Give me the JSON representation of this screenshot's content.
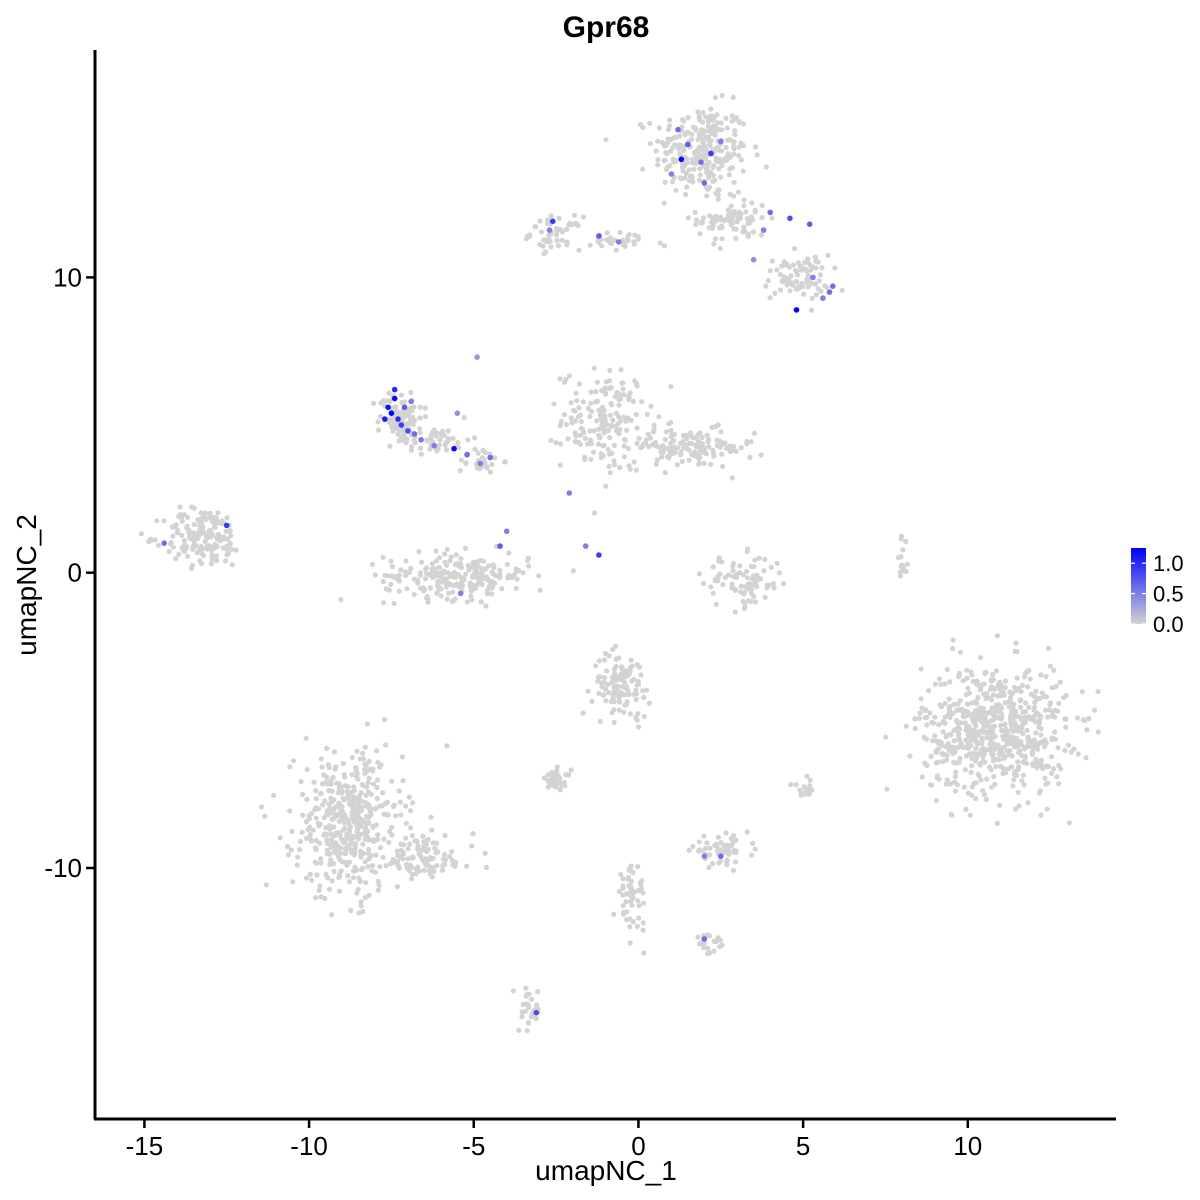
{
  "chart_data": {
    "type": "scatter",
    "title": "Gpr68",
    "xlabel": "umapNC_1",
    "ylabel": "umapNC_2",
    "xlim": [
      -16.5,
      14.5
    ],
    "ylim": [
      -18.5,
      17.7
    ],
    "x_ticks": [
      -15,
      -10,
      -5,
      0,
      5,
      10
    ],
    "x_tick_labels": [
      "-15",
      "-10",
      "-5",
      "0",
      "5",
      "10"
    ],
    "y_ticks": [
      -10,
      0,
      10
    ],
    "y_tick_labels": [
      "-10",
      "0",
      "10"
    ],
    "grid": false,
    "legend": {
      "position": "right",
      "ticks": [
        0.0,
        0.5,
        1.0
      ],
      "tick_labels": [
        "0.0",
        "0.5",
        "1.0"
      ],
      "range": [
        0.0,
        1.25
      ]
    },
    "colors": {
      "low": "#d3d3d3",
      "high": "#0000ff"
    },
    "clusters": [
      {
        "cx": 1.9,
        "cy": 14.3,
        "rx": 1.3,
        "ry": 1.4,
        "n": 260
      },
      {
        "cx": 2.9,
        "cy": 12.0,
        "rx": 1.0,
        "ry": 0.8,
        "n": 80
      },
      {
        "cx": 4.8,
        "cy": 10.0,
        "rx": 0.9,
        "ry": 0.7,
        "n": 80
      },
      {
        "cx": -2.5,
        "cy": 11.5,
        "rx": 0.7,
        "ry": 0.5,
        "n": 50
      },
      {
        "cx": -0.5,
        "cy": 11.2,
        "rx": 1.2,
        "ry": 0.3,
        "n": 30
      },
      {
        "cx": -1.0,
        "cy": 5.2,
        "rx": 1.2,
        "ry": 1.5,
        "n": 170
      },
      {
        "cx": 1.5,
        "cy": 4.2,
        "rx": 1.8,
        "ry": 0.6,
        "n": 130
      },
      {
        "cx": -7.2,
        "cy": 5.3,
        "rx": 0.6,
        "ry": 0.8,
        "n": 90
      },
      {
        "cx": -6.2,
        "cy": 4.5,
        "rx": 1.0,
        "ry": 0.4,
        "n": 50
      },
      {
        "cx": -4.8,
        "cy": 3.8,
        "rx": 0.6,
        "ry": 0.4,
        "n": 30
      },
      {
        "cx": -13.2,
        "cy": 1.2,
        "rx": 1.1,
        "ry": 0.9,
        "n": 160
      },
      {
        "cx": -5.5,
        "cy": -0.1,
        "rx": 2.0,
        "ry": 0.7,
        "n": 230
      },
      {
        "cx": 3.2,
        "cy": -0.3,
        "rx": 1.1,
        "ry": 0.8,
        "n": 90
      },
      {
        "cx": 10.8,
        "cy": -5.3,
        "rx": 2.0,
        "ry": 2.0,
        "n": 650
      },
      {
        "cx": -0.5,
        "cy": -3.8,
        "rx": 0.8,
        "ry": 1.0,
        "n": 110
      },
      {
        "cx": -8.8,
        "cy": -8.5,
        "rx": 1.5,
        "ry": 2.2,
        "n": 450
      },
      {
        "cx": -6.5,
        "cy": -9.7,
        "rx": 1.4,
        "ry": 0.7,
        "n": 90
      },
      {
        "cx": -2.5,
        "cy": -7.0,
        "rx": 0.4,
        "ry": 0.3,
        "n": 35
      },
      {
        "cx": 2.5,
        "cy": -9.4,
        "rx": 0.8,
        "ry": 0.4,
        "n": 60
      },
      {
        "cx": -0.2,
        "cy": -11.0,
        "rx": 0.4,
        "ry": 1.0,
        "n": 55
      },
      {
        "cx": -3.3,
        "cy": -14.8,
        "rx": 0.3,
        "ry": 0.7,
        "n": 30
      },
      {
        "cx": 5.0,
        "cy": -7.3,
        "rx": 0.3,
        "ry": 0.3,
        "n": 15
      },
      {
        "cx": 8.0,
        "cy": 0.3,
        "rx": 0.2,
        "ry": 0.8,
        "n": 15
      },
      {
        "cx": 2.2,
        "cy": -12.6,
        "rx": 0.5,
        "ry": 0.3,
        "n": 20
      }
    ],
    "expressing_points": [
      {
        "x": -7.6,
        "y": 5.6,
        "v": 1.15
      },
      {
        "x": -7.4,
        "y": 5.9,
        "v": 1.2
      },
      {
        "x": -7.3,
        "y": 5.2,
        "v": 1.0
      },
      {
        "x": -7.5,
        "y": 5.4,
        "v": 1.25
      },
      {
        "x": -7.2,
        "y": 5.0,
        "v": 0.9
      },
      {
        "x": -7.0,
        "y": 4.8,
        "v": 0.8
      },
      {
        "x": -7.7,
        "y": 5.2,
        "v": 1.1
      },
      {
        "x": -7.1,
        "y": 5.6,
        "v": 0.7
      },
      {
        "x": -6.8,
        "y": 4.7,
        "v": 0.6
      },
      {
        "x": -6.6,
        "y": 4.5,
        "v": 0.55
      },
      {
        "x": -7.4,
        "y": 6.2,
        "v": 1.0
      },
      {
        "x": -6.9,
        "y": 5.8,
        "v": 0.5
      },
      {
        "x": -5.6,
        "y": 4.2,
        "v": 1.2
      },
      {
        "x": -5.2,
        "y": 4.0,
        "v": 0.6
      },
      {
        "x": -4.8,
        "y": 3.7,
        "v": 0.5
      },
      {
        "x": -4.5,
        "y": 3.9,
        "v": 0.6
      },
      {
        "x": -5.5,
        "y": 5.4,
        "v": 0.4
      },
      {
        "x": -6.2,
        "y": 4.3,
        "v": 0.5
      },
      {
        "x": -4.9,
        "y": 7.3,
        "v": 0.35
      },
      {
        "x": -12.5,
        "y": 1.6,
        "v": 0.9
      },
      {
        "x": -14.4,
        "y": 1.0,
        "v": 0.6
      },
      {
        "x": -4.2,
        "y": 0.9,
        "v": 0.7
      },
      {
        "x": -4.0,
        "y": 1.4,
        "v": 0.5
      },
      {
        "x": -5.4,
        "y": -0.7,
        "v": 0.5
      },
      {
        "x": -2.1,
        "y": 2.7,
        "v": 0.5
      },
      {
        "x": -1.2,
        "y": 0.6,
        "v": 0.9
      },
      {
        "x": -1.6,
        "y": 0.9,
        "v": 0.5
      },
      {
        "x": 1.2,
        "y": 15.0,
        "v": 0.6
      },
      {
        "x": 1.5,
        "y": 14.5,
        "v": 0.7
      },
      {
        "x": 2.2,
        "y": 14.2,
        "v": 0.9
      },
      {
        "x": 1.9,
        "y": 13.9,
        "v": 0.6
      },
      {
        "x": 1.3,
        "y": 14.0,
        "v": 1.2
      },
      {
        "x": 2.5,
        "y": 14.6,
        "v": 0.5
      },
      {
        "x": 1.0,
        "y": 13.5,
        "v": 0.5
      },
      {
        "x": 2.0,
        "y": 13.2,
        "v": 0.6
      },
      {
        "x": 4.0,
        "y": 12.2,
        "v": 0.6
      },
      {
        "x": 4.6,
        "y": 12.0,
        "v": 0.8
      },
      {
        "x": 5.2,
        "y": 11.8,
        "v": 0.7
      },
      {
        "x": 3.8,
        "y": 11.6,
        "v": 0.5
      },
      {
        "x": 4.8,
        "y": 8.9,
        "v": 1.25
      },
      {
        "x": 5.8,
        "y": 9.5,
        "v": 0.6
      },
      {
        "x": 5.9,
        "y": 9.7,
        "v": 0.6
      },
      {
        "x": 5.6,
        "y": 9.3,
        "v": 0.5
      },
      {
        "x": 5.3,
        "y": 10.0,
        "v": 0.5
      },
      {
        "x": 3.5,
        "y": 10.6,
        "v": 0.4
      },
      {
        "x": -2.6,
        "y": 11.9,
        "v": 0.9
      },
      {
        "x": -1.2,
        "y": 11.4,
        "v": 0.7
      },
      {
        "x": -0.6,
        "y": 11.2,
        "v": 0.5
      },
      {
        "x": -2.7,
        "y": 11.6,
        "v": 0.5
      },
      {
        "x": 2.0,
        "y": -9.6,
        "v": 0.5
      },
      {
        "x": 2.5,
        "y": -9.6,
        "v": 0.6
      },
      {
        "x": 2.0,
        "y": -12.4,
        "v": 0.6
      },
      {
        "x": -3.1,
        "y": -14.9,
        "v": 0.8
      }
    ]
  }
}
